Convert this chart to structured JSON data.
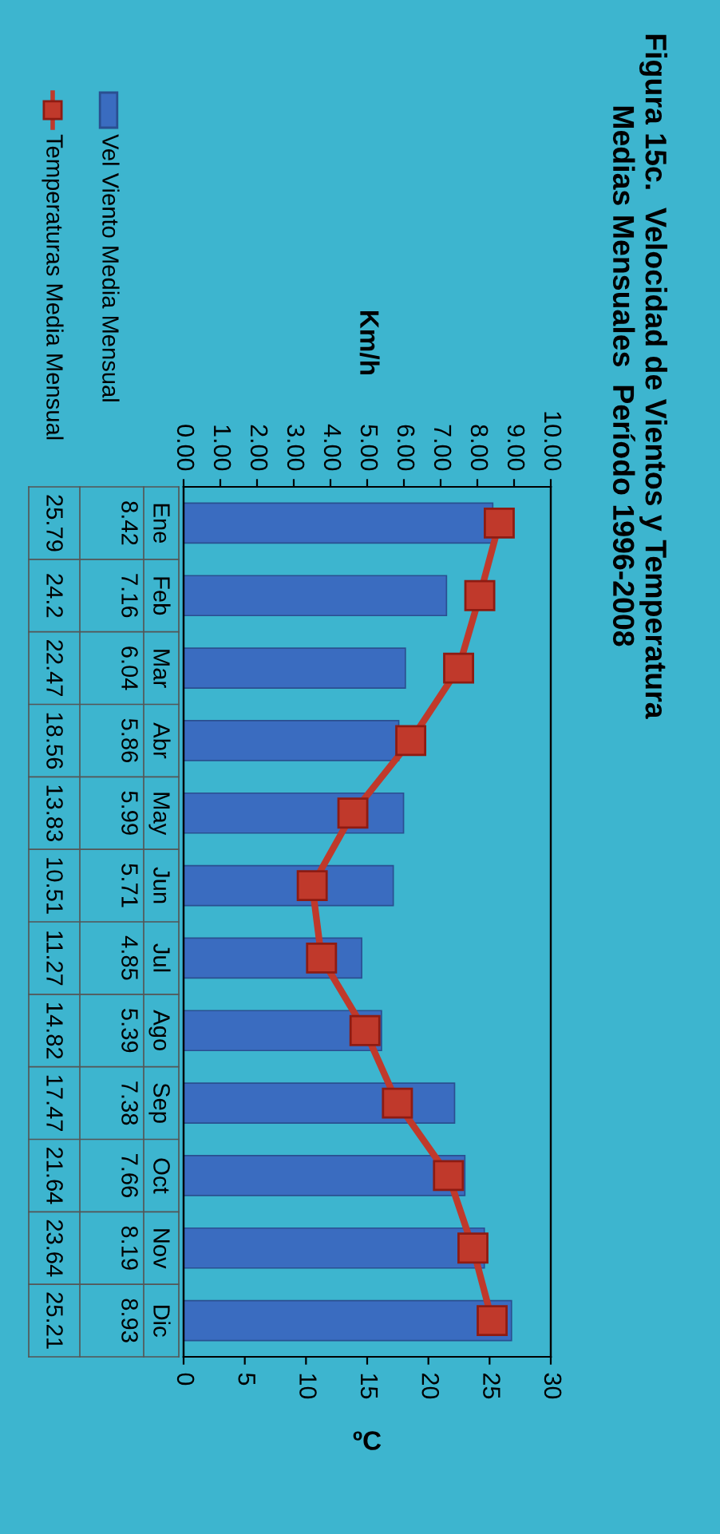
{
  "chart_data": {
    "type": "bar",
    "orientation": "horizontal",
    "title": "Figura 15c.  Velocidad de Vientos y Temperatura\nMedias Mensuales  Período 1996-2008",
    "x2label": "Km/h",
    "xlabel": "ºC",
    "categories": [
      "Ene",
      "Feb",
      "Mar",
      "Abr",
      "May",
      "Jun",
      "Jul",
      "Ago",
      "Sep",
      "Oct",
      "Nov",
      "Dic"
    ],
    "series": [
      {
        "name": "Vel Viento Media Mensual",
        "axis": "x2",
        "color": "#3a6cc0",
        "values": [
          8.42,
          7.16,
          6.04,
          5.86,
          5.99,
          5.71,
          4.85,
          5.39,
          7.38,
          7.66,
          8.19,
          8.93
        ]
      },
      {
        "name": "Temperaturas Media Mensual",
        "type": "line",
        "color": "#c0392b",
        "marker": "square",
        "values": [
          25.79,
          24.2,
          22.47,
          18.56,
          13.83,
          10.51,
          11.27,
          14.82,
          17.47,
          21.64,
          23.64,
          25.21
        ]
      }
    ],
    "x2lim": [
      0,
      10
    ],
    "x2ticks": [
      {
        "value": 0,
        "label": "0.00"
      },
      {
        "value": 1,
        "label": "1.00"
      },
      {
        "value": 2,
        "label": "2.00"
      },
      {
        "value": 3,
        "label": "3.00"
      },
      {
        "value": 4,
        "label": "4.00"
      },
      {
        "value": 5,
        "label": "5.00"
      },
      {
        "value": 6,
        "label": "6.00"
      },
      {
        "value": 7,
        "label": "7.00"
      },
      {
        "value": 8,
        "label": "8.00"
      },
      {
        "value": 9,
        "label": "9.00"
      },
      {
        "value": 10,
        "label": "10.00"
      }
    ],
    "xlim": [
      0,
      30
    ],
    "xticks": [
      0,
      5,
      10,
      15,
      20,
      25,
      30
    ],
    "data_labels": true,
    "legend": "left",
    "grid": false
  }
}
